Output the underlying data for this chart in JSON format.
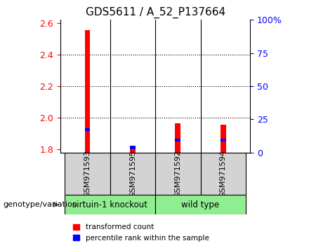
{
  "title": "GDS5611 / A_52_P137664",
  "samples": [
    "GSM971593",
    "GSM971595",
    "GSM971592",
    "GSM971594"
  ],
  "group_labels": [
    "sirtuin-1 knockout",
    "wild type"
  ],
  "red_values": [
    2.555,
    1.8,
    1.965,
    1.955
  ],
  "blue_values": [
    1.925,
    1.812,
    1.857,
    1.857
  ],
  "ylim_left": [
    1.78,
    2.62
  ],
  "ylim_right": [
    0,
    100
  ],
  "yticks_left": [
    1.8,
    2.0,
    2.2,
    2.4,
    2.6
  ],
  "yticks_right": [
    0,
    25,
    50,
    75,
    100
  ],
  "ytick_labels_right": [
    "0",
    "25",
    "50",
    "75",
    "100%"
  ],
  "bar_width": 0.12,
  "blue_bar_height": 0.018,
  "bg_plot": "#ffffff",
  "bg_sample": "#d3d3d3",
  "group1_color": "#90EE90",
  "group2_color": "#90EE90",
  "left_axis_color": "red",
  "right_axis_color": "blue",
  "legend_red": "transformed count",
  "legend_blue": "percentile rank within the sample",
  "genotype_label": "genotype/variation",
  "grid_yticks": [
    2.0,
    2.2,
    2.4
  ]
}
